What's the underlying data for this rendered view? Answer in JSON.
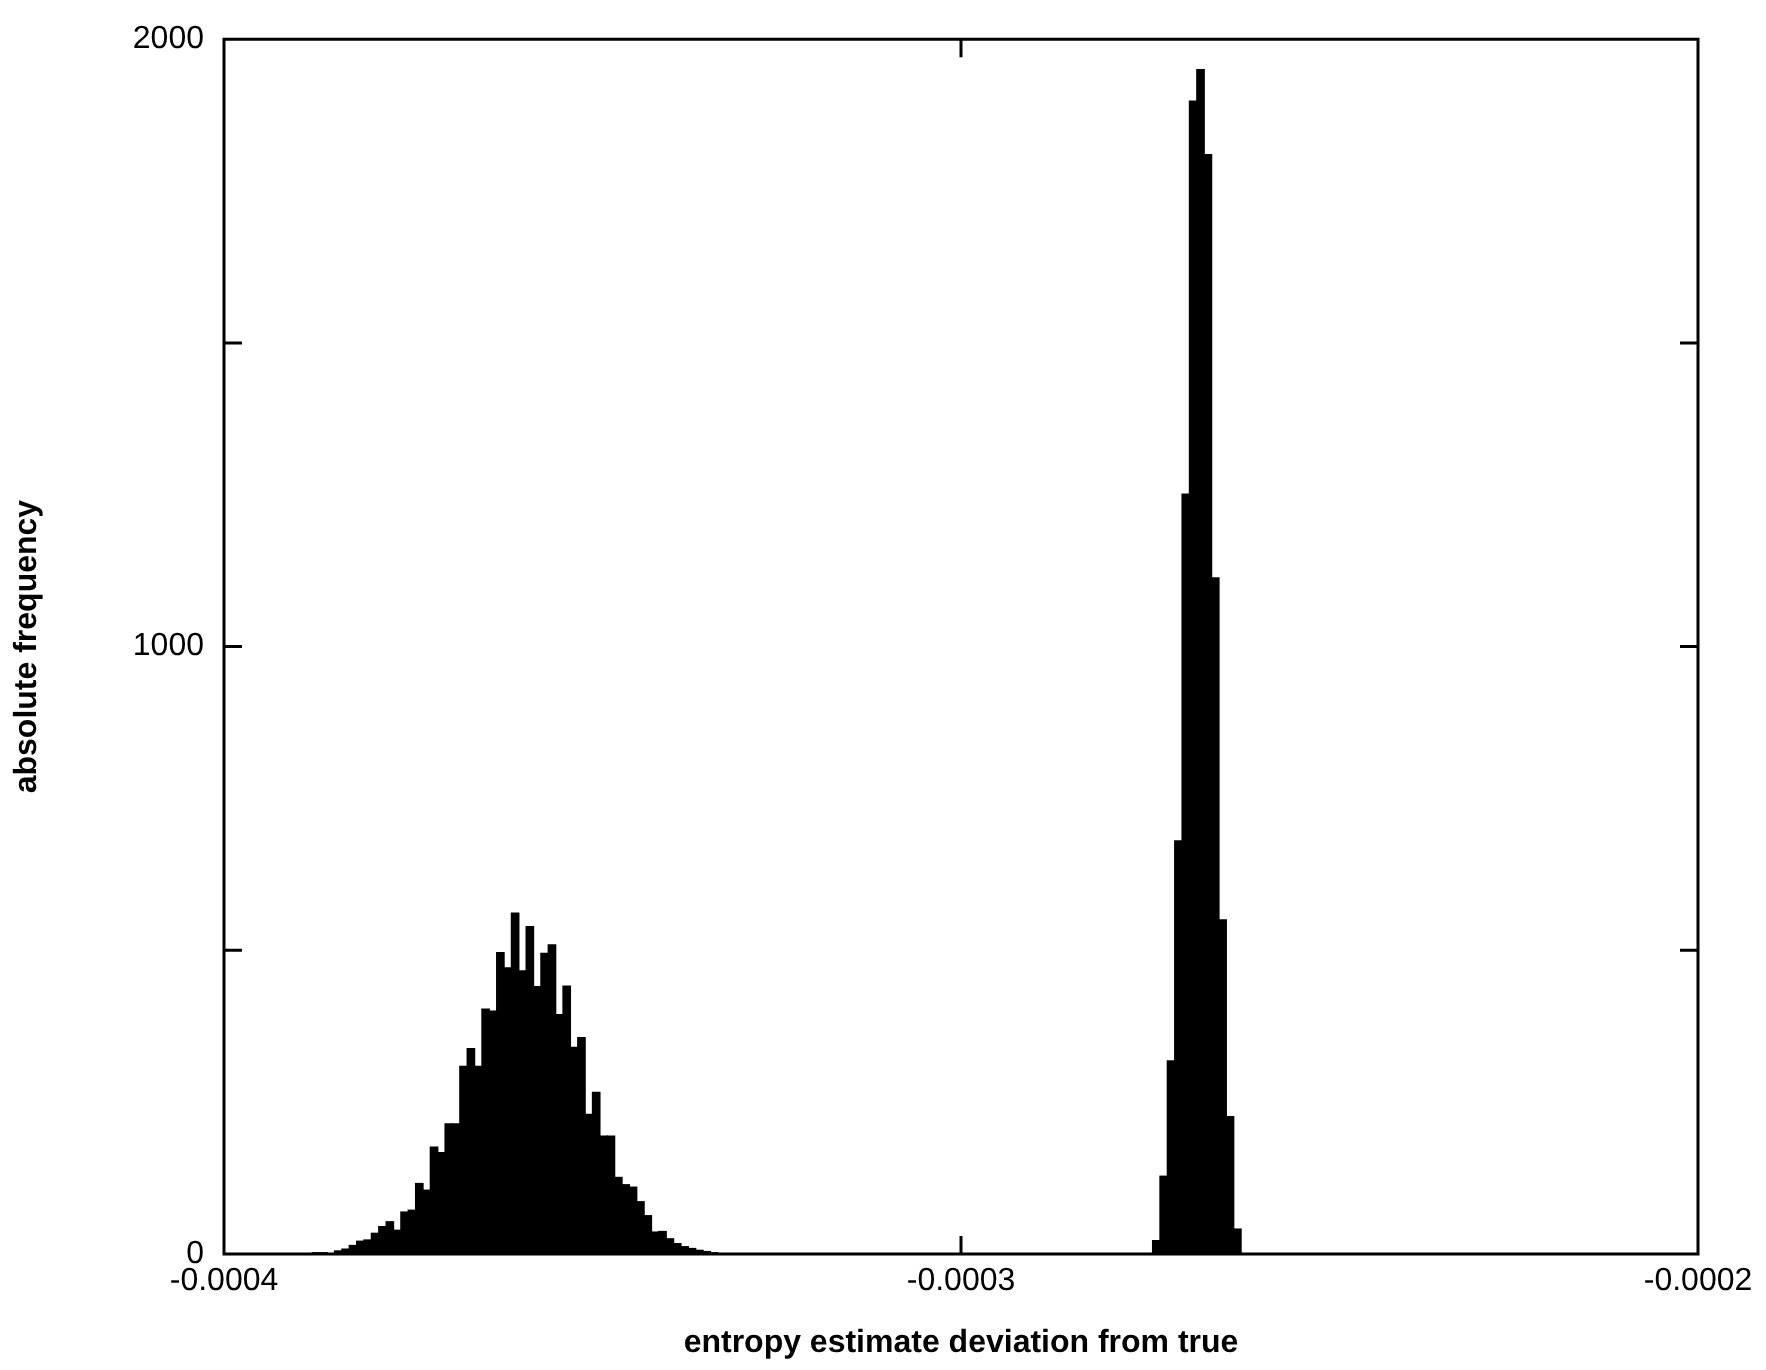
{
  "chart_data": {
    "type": "histogram",
    "xlabel": "entropy estimate deviation from true",
    "ylabel": "absolute frequency",
    "bins": [
      -0.00039,
      -0.000389,
      -0.000388,
      -0.000387,
      -0.000386,
      -0.000385,
      -0.000384,
      -0.000383,
      -0.000382,
      -0.000381,
      -0.00038,
      -0.000379,
      -0.000378,
      -0.000377,
      -0.000376,
      -0.000375,
      -0.000374,
      -0.000373,
      -0.000372,
      -0.000371,
      -0.00037,
      -0.000369,
      -0.000368,
      -0.000367,
      -0.000366,
      -0.000365,
      -0.000364,
      -0.000363,
      -0.000362,
      -0.000361,
      -0.00036,
      -0.000359,
      -0.000358,
      -0.000357,
      -0.000356,
      -0.000355,
      -0.000354,
      -0.000353,
      -0.000352,
      -0.000351,
      -0.00035,
      -0.000349,
      -0.000348,
      -0.000347,
      -0.000346,
      -0.000345,
      -0.000344,
      -0.000343,
      -0.000342,
      -0.000341,
      -0.00034,
      -0.000339,
      -0.000338,
      -0.000337,
      -0.000336,
      -0.000335,
      -0.000334,
      -0.000333,
      -0.000332,
      -0.000331,
      -0.00033,
      -0.000329,
      -0.000328,
      -0.000327,
      -0.000326,
      -0.000325,
      -0.000324,
      -0.000323,
      -0.000322,
      -0.000321,
      -0.00032,
      -0.000319,
      -0.000318,
      -0.000317,
      -0.000316,
      -0.000315,
      -0.000314,
      -0.000313,
      -0.000312,
      -0.000311,
      -0.00031,
      -0.000309,
      -0.000308,
      -0.000307,
      -0.000306,
      -0.000305,
      -0.000304,
      -0.000303,
      -0.000302,
      -0.000301,
      -0.0003,
      -0.000299,
      -0.000298,
      -0.000297,
      -0.000296,
      -0.000295,
      -0.000294,
      -0.000293,
      -0.000292,
      -0.000291,
      -0.00029,
      -0.000289,
      -0.000288,
      -0.000287,
      -0.000286,
      -0.000285,
      -0.000284,
      -0.000283,
      -0.000282,
      -0.000281,
      -0.00028,
      -0.000279,
      -0.000278,
      -0.000277,
      -0.000276,
      -0.000275,
      -0.000274,
      -0.000273,
      -0.000272,
      -0.000271,
      -0.00027,
      -0.000269,
      -0.000268,
      -0.000267,
      -0.000266,
      -0.000265,
      -0.000264,
      -0.000263,
      -0.000262
    ],
    "values": [
      null,
      null,
      2,
      2,
      null,
      5,
      8,
      14,
      21,
      23,
      34,
      45,
      53,
      39,
      69,
      72,
      116,
      105,
      176,
      167,
      214,
      214,
      309,
      338,
      309,
      403,
      400,
      496,
      471,
      561,
      466,
      539,
      440,
      495,
      509,
      394,
      441,
      340,
      356,
      230,
      266,
      194,
      194,
      126,
      114,
      110,
      86,
      63,
      36,
      37,
      25,
      17,
      12,
      9,
      6,
      4,
      2,
      null,
      null,
      0,
      0,
      0,
      0,
      0,
      0,
      0,
      0,
      0,
      0,
      0,
      0,
      0,
      0,
      0,
      0,
      0,
      0,
      0,
      0,
      0,
      0,
      0,
      0,
      0,
      0,
      0,
      0,
      0,
      0,
      0,
      0,
      0,
      0,
      0,
      0,
      0,
      0,
      0,
      0,
      0,
      0,
      0,
      0,
      0,
      0,
      0,
      0,
      0,
      0,
      0,
      0,
      0,
      0,
      0,
      0,
      0,
      22,
      128,
      318,
      680,
      1251,
      1898,
      1950,
      1810,
      1113,
      550,
      226,
      41
    ],
    "color": "#000000",
    "xlim": [
      -0.0004,
      -0.0002
    ],
    "xticks": [
      -0.0004,
      -0.0003,
      -0.0002
    ],
    "ylim": [
      0,
      2000
    ],
    "yticks": [
      0,
      {
        "value": 500,
        "label": null
      },
      1000,
      {
        "value": 1500,
        "label": null
      },
      2000
    ],
    "grid": false,
    "legend": false
  }
}
